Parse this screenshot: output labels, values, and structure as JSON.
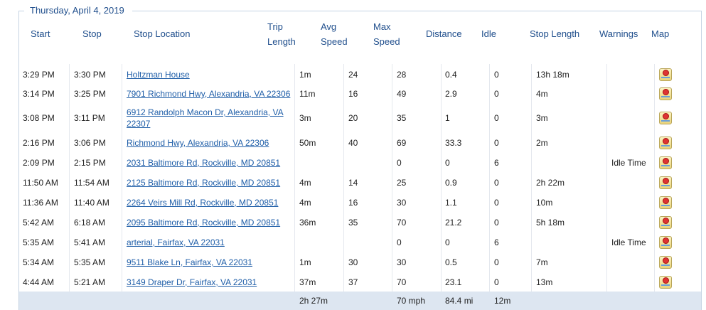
{
  "group": {
    "title": "Thursday, April 4, 2019"
  },
  "headers": {
    "start": "Start",
    "stop": "Stop",
    "stop_location": "Stop Location",
    "trip_length_1": "Trip",
    "trip_length_2": "Length",
    "avg_speed_1": "Avg",
    "avg_speed_2": "Speed",
    "max_speed_1": "Max",
    "max_speed_2": "Speed",
    "distance": "Distance",
    "idle": "Idle",
    "stop_length": "Stop Length",
    "warnings": "Warnings",
    "map": "Map"
  },
  "rows": [
    {
      "start": "3:29 PM",
      "stop": "3:30 PM",
      "location": "Holtzman House",
      "trip": "1m",
      "avg": "24",
      "max": "28",
      "distance": "0.4",
      "idle": "0",
      "stop_length": "13h 18m",
      "warnings": ""
    },
    {
      "start": "3:14 PM",
      "stop": "3:25 PM",
      "location": "7901 Richmond Hwy, Alexandria, VA 22306",
      "trip": "11m",
      "avg": "16",
      "max": "49",
      "distance": "2.9",
      "idle": "0",
      "stop_length": "4m",
      "warnings": ""
    },
    {
      "start": "3:08 PM",
      "stop": "3:11 PM",
      "location": "6912 Randolph Macon Dr, Alexandria, VA 22307",
      "trip": "3m",
      "avg": "20",
      "max": "35",
      "distance": "1",
      "idle": "0",
      "stop_length": "3m",
      "warnings": ""
    },
    {
      "start": "2:16 PM",
      "stop": "3:06 PM",
      "location": "Richmond Hwy, Alexandria, VA 22306",
      "trip": "50m",
      "avg": "40",
      "max": "69",
      "distance": "33.3",
      "idle": "0",
      "stop_length": "2m",
      "warnings": ""
    },
    {
      "start": "2:09 PM",
      "stop": "2:15 PM",
      "location": "2031 Baltimore Rd, Rockville, MD 20851",
      "trip": "",
      "avg": "",
      "max": "0",
      "distance": "0",
      "idle": "6",
      "stop_length": "",
      "warnings": "Idle Time"
    },
    {
      "start": "11:50 AM",
      "stop": "11:54 AM",
      "location": "2125 Baltimore Rd, Rockville, MD 20851",
      "trip": "4m",
      "avg": "14",
      "max": "25",
      "distance": "0.9",
      "idle": "0",
      "stop_length": "2h 22m",
      "warnings": ""
    },
    {
      "start": "11:36 AM",
      "stop": "11:40 AM",
      "location": "2264 Veirs Mill Rd, Rockville, MD 20851",
      "trip": "4m",
      "avg": "16",
      "max": "30",
      "distance": "1.1",
      "idle": "0",
      "stop_length": "10m",
      "warnings": ""
    },
    {
      "start": "5:42 AM",
      "stop": "6:18 AM",
      "location": "2095 Baltimore Rd, Rockville, MD 20851",
      "trip": "36m",
      "avg": "35",
      "max": "70",
      "distance": "21.2",
      "idle": "0",
      "stop_length": "5h 18m",
      "warnings": ""
    },
    {
      "start": "5:35 AM",
      "stop": "5:41 AM",
      "location": "arterial, Fairfax, VA 22031",
      "trip": "",
      "avg": "",
      "max": "0",
      "distance": "0",
      "idle": "6",
      "stop_length": "",
      "warnings": "Idle Time"
    },
    {
      "start": "5:34 AM",
      "stop": "5:35 AM",
      "location": "9511 Blake Ln, Fairfax, VA 22031",
      "trip": "1m",
      "avg": "30",
      "max": "30",
      "distance": "0.5",
      "idle": "0",
      "stop_length": "7m",
      "warnings": ""
    },
    {
      "start": "4:44 AM",
      "stop": "5:21 AM",
      "location": "3149 Draper Dr, Fairfax, VA 22031",
      "trip": "37m",
      "avg": "37",
      "max": "70",
      "distance": "23.1",
      "idle": "0",
      "stop_length": "13m",
      "warnings": ""
    }
  ],
  "totals": {
    "trip": "2h 27m",
    "max": "70 mph",
    "distance": "84.4 mi",
    "idle": "12m"
  },
  "icons": {
    "row_map": "map-icon"
  }
}
